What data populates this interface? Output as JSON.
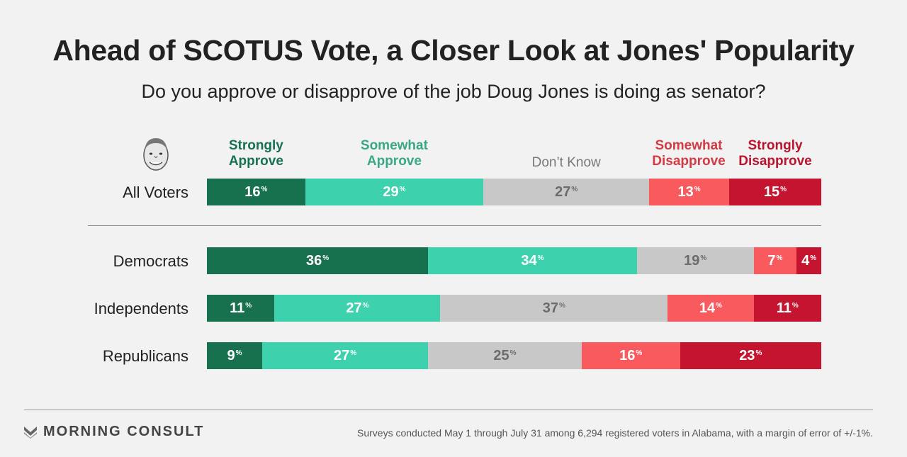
{
  "title": "Ahead of SCOTUS Vote, a Closer Look at Jones' Popularity",
  "subtitle": "Do you approve or disapprove of the job Doug Jones is doing as senator?",
  "logo": "MORNING CONSULT",
  "footnote": "Surveys conducted May 1 through July 31 among 6,294 registered voters in Alabama, with a margin of error of +/-1%.",
  "percent_symbol": "%",
  "colors": {
    "strongly_approve": "#17714f",
    "somewhat_approve": "#3dd2ad",
    "dont_know": "#c8c8c8",
    "somewhat_disapprove": "#f85a5e",
    "strongly_disapprove": "#c4142f"
  },
  "chart_data": {
    "type": "bar",
    "stacked": true,
    "orientation": "horizontal",
    "categories": [
      "All Voters",
      "Democrats",
      "Independents",
      "Republicans"
    ],
    "series": [
      {
        "name": "Strongly Approve",
        "values": [
          16,
          36,
          11,
          9
        ]
      },
      {
        "name": "Somewhat Approve",
        "values": [
          29,
          34,
          27,
          27
        ]
      },
      {
        "name": "Don't Know",
        "values": [
          27,
          19,
          37,
          25
        ]
      },
      {
        "name": "Somewhat Disapprove",
        "values": [
          13,
          7,
          14,
          16
        ]
      },
      {
        "name": "Strongly Disapprove",
        "values": [
          15,
          4,
          11,
          23
        ]
      }
    ],
    "legend_labels": [
      "Strongly\nApprove",
      "Somewhat\nApprove",
      "Don’t Know",
      "Somewhat\nDisapprove",
      "Strongly\nDisapprove"
    ],
    "legend_placement": "top",
    "xlim": [
      0,
      100
    ]
  }
}
